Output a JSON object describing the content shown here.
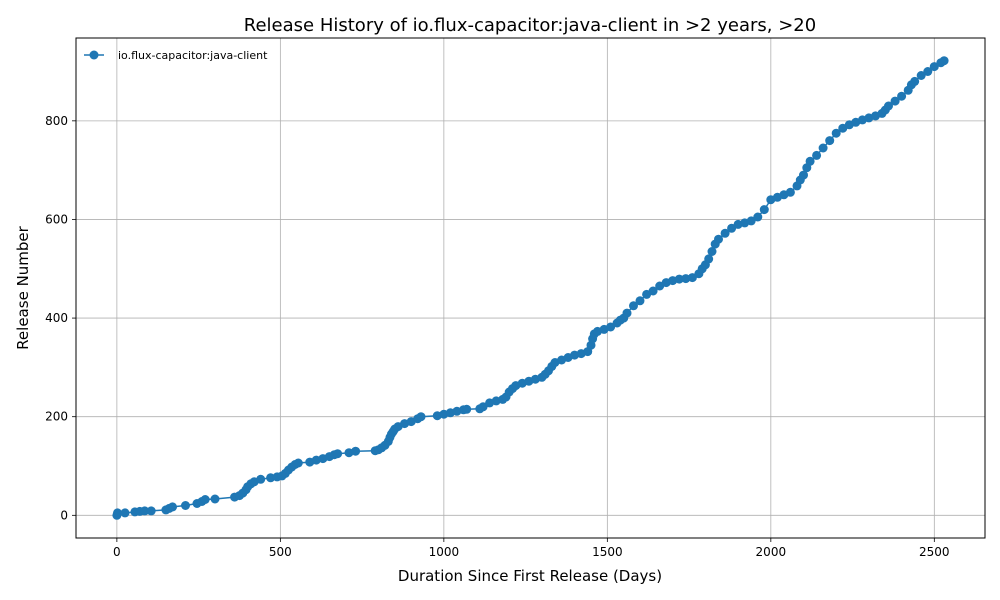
{
  "chart_data": {
    "type": "line",
    "title": "Release History of io.flux-capacitor:java-client in >2 years, >20",
    "xlabel": "Duration Since First Release (Days)",
    "ylabel": "Release Number",
    "xlim": [
      -125,
      2655
    ],
    "ylim": [
      -46,
      968
    ],
    "xticks": [
      0,
      500,
      1000,
      1500,
      2000,
      2500
    ],
    "yticks": [
      0,
      200,
      400,
      600,
      800
    ],
    "grid": true,
    "legend_position": "top-left",
    "colors": {
      "series": "#1f77b4"
    },
    "series": [
      {
        "name": "io.flux-capacitor:java-client",
        "x": [
          0,
          2,
          25,
          55,
          70,
          85,
          105,
          150,
          160,
          170,
          210,
          245,
          260,
          270,
          300,
          360,
          375,
          385,
          395,
          400,
          410,
          420,
          440,
          470,
          490,
          505,
          515,
          525,
          535,
          545,
          555,
          590,
          610,
          630,
          650,
          665,
          675,
          710,
          730,
          790,
          800,
          810,
          820,
          830,
          835,
          840,
          845,
          850,
          860,
          880,
          900,
          920,
          930,
          980,
          1000,
          1020,
          1040,
          1060,
          1070,
          1110,
          1120,
          1140,
          1160,
          1180,
          1190,
          1200,
          1210,
          1220,
          1240,
          1260,
          1280,
          1300,
          1310,
          1320,
          1330,
          1340,
          1360,
          1380,
          1400,
          1420,
          1440,
          1450,
          1455,
          1460,
          1470,
          1490,
          1510,
          1530,
          1540,
          1550,
          1560,
          1580,
          1600,
          1620,
          1640,
          1660,
          1680,
          1700,
          1720,
          1740,
          1760,
          1780,
          1790,
          1800,
          1810,
          1820,
          1830,
          1840,
          1860,
          1880,
          1900,
          1920,
          1940,
          1960,
          1980,
          2000,
          2020,
          2040,
          2060,
          2080,
          2090,
          2100,
          2110,
          2120,
          2140,
          2160,
          2180,
          2200,
          2220,
          2240,
          2260,
          2280,
          2300,
          2320,
          2340,
          2350,
          2360,
          2380,
          2400,
          2420,
          2430,
          2440,
          2460,
          2480,
          2500,
          2520,
          2530
        ],
        "y": [
          0,
          5,
          5,
          7,
          8,
          9,
          9,
          11,
          14,
          17,
          20,
          24,
          28,
          32,
          33,
          37,
          40,
          45,
          52,
          58,
          64,
          68,
          73,
          76,
          78,
          80,
          85,
          92,
          98,
          103,
          106,
          108,
          112,
          115,
          119,
          123,
          125,
          127,
          130,
          131,
          133,
          137,
          142,
          150,
          158,
          165,
          170,
          175,
          180,
          186,
          190,
          196,
          200,
          202,
          205,
          208,
          211,
          214,
          215,
          216,
          220,
          228,
          232,
          235,
          240,
          250,
          257,
          263,
          268,
          272,
          276,
          280,
          286,
          293,
          302,
          310,
          315,
          320,
          325,
          328,
          332,
          345,
          358,
          368,
          373,
          377,
          382,
          390,
          396,
          400,
          410,
          425,
          435,
          448,
          455,
          465,
          472,
          476,
          479,
          480,
          482,
          490,
          500,
          508,
          520,
          535,
          550,
          560,
          572,
          582,
          590,
          593,
          597,
          605,
          620,
          640,
          645,
          650,
          655,
          668,
          680,
          690,
          705,
          718,
          730,
          745,
          760,
          775,
          785,
          792,
          797,
          802,
          806,
          810,
          815,
          822,
          830,
          840,
          850,
          862,
          873,
          880,
          892,
          900,
          910,
          918,
          922
        ]
      }
    ]
  }
}
